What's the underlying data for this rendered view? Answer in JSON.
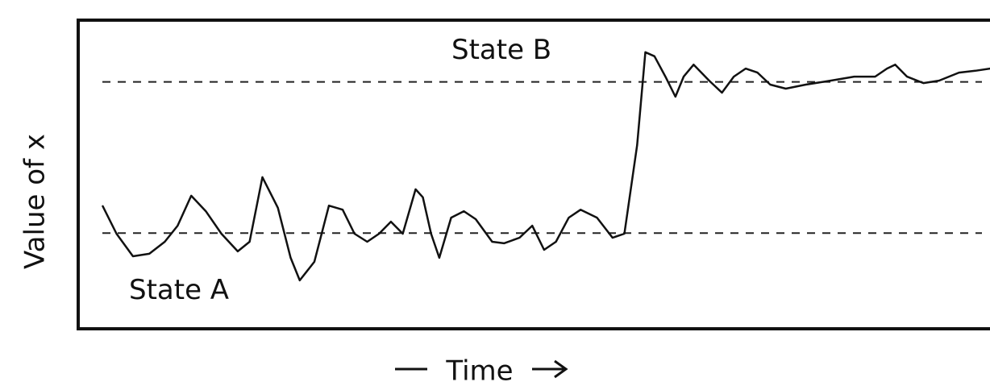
{
  "chart_data": {
    "type": "line",
    "ylabel": "Value of x",
    "xlabel": "Time",
    "xlim": [
      0,
      100
    ],
    "ylim": [
      0,
      100
    ],
    "reference_lines": [
      {
        "label": "State B",
        "value": 80
      },
      {
        "label": "State A",
        "value": 31
      }
    ],
    "x": [
      2.7,
      4.2,
      6.0,
      7.8,
      9.5,
      10.9,
      12.4,
      14.0,
      15.7,
      17.5,
      18.8,
      20.2,
      21.9,
      23.3,
      24.3,
      25.9,
      27.5,
      29.0,
      30.3,
      31.7,
      33.0,
      34.3,
      35.6,
      37.0,
      37.8,
      38.7,
      39.6,
      40.9,
      42.3,
      43.6,
      45.4,
      46.7,
      48.4,
      49.8,
      51.1,
      52.4,
      53.8,
      55.1,
      56.9,
      58.6,
      59.9,
      61.3,
      62.2,
      63.2,
      64.4,
      65.5,
      66.4,
      67.5,
      69.2,
      70.6,
      71.9,
      73.2,
      74.5,
      75.9,
      77.6,
      79.8,
      82.5,
      85.1,
      87.4,
      88.7,
      89.6,
      90.9,
      92.7,
      94.4,
      96.6,
      98.4,
      100
    ],
    "values": [
      39.7,
      30.8,
      23.5,
      24.3,
      28.2,
      33.4,
      43.1,
      38.1,
      30.8,
      25.1,
      28.2,
      49.1,
      39.2,
      23.0,
      15.7,
      21.7,
      39.9,
      38.6,
      30.8,
      28.2,
      30.8,
      34.7,
      30.8,
      45.2,
      42.6,
      30.8,
      23.0,
      36.0,
      38.1,
      35.5,
      28.2,
      27.7,
      29.5,
      33.4,
      25.6,
      28.2,
      36.0,
      38.6,
      36.0,
      29.5,
      30.8,
      59.5,
      89.6,
      88.3,
      81.7,
      75.2,
      81.7,
      85.6,
      80.4,
      76.5,
      81.7,
      84.3,
      83.0,
      79.1,
      77.8,
      79.1,
      80.4,
      81.7,
      81.7,
      84.3,
      85.6,
      81.7,
      79.6,
      80.4,
      83.0,
      83.6,
      84.3
    ],
    "color": "#111111"
  }
}
